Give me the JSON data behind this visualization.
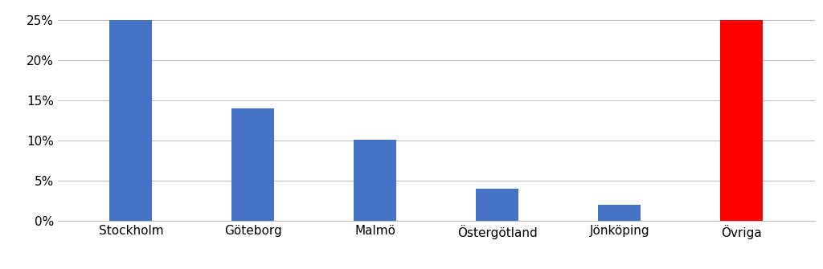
{
  "categories": [
    "Stockholm",
    "Göteborg",
    "Malmö",
    "Östergötland",
    "Jönköping",
    "Övriga"
  ],
  "values": [
    0.25,
    0.14,
    0.101,
    0.04,
    0.02,
    0.25
  ],
  "bar_colors": [
    "#4472C4",
    "#4472C4",
    "#4472C4",
    "#4472C4",
    "#4472C4",
    "#FF0000"
  ],
  "ylim": [
    0,
    0.265
  ],
  "yticks": [
    0.0,
    0.05,
    0.1,
    0.15,
    0.2,
    0.25
  ],
  "background_color": "#FFFFFF",
  "grid_color": "#BFBFBF",
  "bar_width": 0.35,
  "tick_fontsize": 11,
  "label_fontsize": 11
}
